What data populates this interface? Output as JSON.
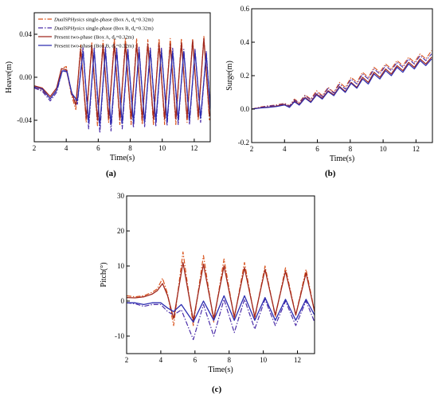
{
  "panel_labels": [
    "(a)",
    "(b)",
    "(c)"
  ],
  "chart_data": [
    {
      "panel": "(a)",
      "type": "line",
      "xlabel": "Time(s)",
      "ylabel": "Heave(m)",
      "xlim": [
        2,
        13
      ],
      "ylim": [
        -0.06,
        0.06
      ],
      "xticks": [
        2,
        4,
        6,
        8,
        10,
        12
      ],
      "yticks": [
        -0.04,
        0.0,
        0.04
      ],
      "ytick_labels": [
        "-0.04",
        "0.00",
        "0.04"
      ],
      "legend": [
        {
          "prefix": "DualSPHysics",
          "text": " single-phase (Box A, d",
          "sub": "s",
          "suffix": "=0.32m)",
          "color": "#d9541e",
          "dash": "6,2,1.5,2"
        },
        {
          "prefix": "DualSPHysics",
          "text": " single-phase (Box B, d",
          "sub": "s",
          "suffix": "=0.32m)",
          "color": "#4a2ca8",
          "dash": "6,2,1.5,2"
        },
        {
          "prefix": "",
          "text": "Present two-phase (Box A, d",
          "sub": "s",
          "suffix": "=0.32m)",
          "color": "#a0281e",
          "dash": ""
        },
        {
          "prefix": "",
          "text": "Present two-phase (Box B, d",
          "sub": "s",
          "suffix": "=0.32m)",
          "color": "#2c2cb0",
          "dash": ""
        }
      ],
      "series": [
        {
          "name": "DualSPHysics single-phase (Box A, ds=0.32m)",
          "color": "#d9541e",
          "dash": "6,2,1.5,2",
          "width": 1.2,
          "x": [
            2.0,
            2.5,
            3.0,
            3.4,
            3.7,
            4.0,
            4.3,
            4.6,
            4.9,
            5.25,
            5.6,
            5.95,
            6.3,
            6.65,
            7.0,
            7.35,
            7.7,
            8.05,
            8.4,
            8.75,
            9.1,
            9.45,
            9.8,
            10.15,
            10.5,
            10.85,
            11.2,
            11.55,
            11.9,
            12.25,
            12.6,
            12.95
          ],
          "y": [
            -0.01,
            -0.012,
            -0.02,
            -0.012,
            0.008,
            0.01,
            -0.015,
            -0.03,
            0.03,
            -0.042,
            0.032,
            -0.045,
            0.034,
            -0.042,
            0.036,
            -0.044,
            0.036,
            -0.044,
            0.036,
            -0.044,
            0.035,
            -0.044,
            0.036,
            -0.044,
            0.036,
            -0.044,
            0.036,
            -0.042,
            0.036,
            -0.04,
            0.038,
            -0.04
          ]
        },
        {
          "name": "DualSPHysics single-phase (Box B, ds=0.32m)",
          "color": "#4a2ca8",
          "dash": "6,2,1.5,2",
          "width": 1.2,
          "x": [
            2.0,
            2.5,
            3.0,
            3.4,
            3.75,
            4.05,
            4.35,
            4.7,
            5.05,
            5.4,
            5.75,
            6.1,
            6.45,
            6.8,
            7.15,
            7.5,
            7.85,
            8.2,
            8.55,
            8.9,
            9.25,
            9.6,
            9.95,
            10.3,
            10.65,
            11.0,
            11.35,
            11.7,
            12.05,
            12.4,
            12.75,
            13.0
          ],
          "y": [
            -0.01,
            -0.013,
            -0.022,
            -0.014,
            0.006,
            0.006,
            -0.016,
            -0.025,
            0.028,
            -0.048,
            0.027,
            -0.052,
            0.028,
            -0.05,
            0.027,
            -0.048,
            0.027,
            -0.047,
            0.028,
            -0.046,
            0.028,
            -0.046,
            0.027,
            -0.045,
            0.027,
            -0.044,
            0.026,
            -0.044,
            0.026,
            -0.042,
            0.024,
            -0.03
          ]
        },
        {
          "name": "Present two-phase (Box A, ds=0.32m)",
          "color": "#a0281e",
          "dash": "",
          "width": 1.3,
          "x": [
            2.0,
            2.5,
            3.0,
            3.4,
            3.7,
            4.0,
            4.3,
            4.6,
            4.9,
            5.25,
            5.6,
            5.95,
            6.3,
            6.65,
            7.0,
            7.35,
            7.7,
            8.05,
            8.4,
            8.75,
            9.1,
            9.45,
            9.8,
            10.15,
            10.5,
            10.85,
            11.2,
            11.55,
            11.9,
            12.25,
            12.6,
            12.95
          ],
          "y": [
            -0.008,
            -0.01,
            -0.018,
            -0.01,
            0.008,
            0.007,
            -0.012,
            -0.026,
            0.026,
            -0.038,
            0.029,
            -0.04,
            0.03,
            -0.038,
            0.031,
            -0.039,
            0.031,
            -0.039,
            0.031,
            -0.039,
            0.031,
            -0.039,
            0.031,
            -0.039,
            0.031,
            -0.039,
            0.032,
            -0.038,
            0.034,
            -0.037,
            0.036,
            -0.036
          ]
        },
        {
          "name": "Present two-phase (Box B, ds=0.32m)",
          "color": "#2c2cb0",
          "dash": "",
          "width": 1.3,
          "x": [
            2.0,
            2.5,
            3.0,
            3.4,
            3.75,
            4.05,
            4.35,
            4.7,
            5.05,
            5.4,
            5.75,
            6.1,
            6.45,
            6.8,
            7.15,
            7.5,
            7.85,
            8.2,
            8.55,
            8.9,
            9.25,
            9.6,
            9.95,
            10.3,
            10.65,
            11.0,
            11.35,
            11.7,
            12.05,
            12.4,
            12.75,
            13.0
          ],
          "y": [
            -0.009,
            -0.011,
            -0.02,
            -0.012,
            0.006,
            0.005,
            -0.015,
            -0.022,
            0.024,
            -0.042,
            0.025,
            -0.045,
            0.025,
            -0.044,
            0.025,
            -0.043,
            0.025,
            -0.042,
            0.025,
            -0.042,
            0.025,
            -0.041,
            0.025,
            -0.041,
            0.024,
            -0.04,
            0.024,
            -0.04,
            0.024,
            -0.038,
            0.022,
            -0.03
          ]
        }
      ]
    },
    {
      "panel": "(b)",
      "type": "line",
      "xlabel": "Time(s)",
      "ylabel": "Surge(m)",
      "xlim": [
        2,
        13
      ],
      "ylim": [
        -0.2,
        0.6
      ],
      "xticks": [
        2,
        4,
        6,
        8,
        10,
        12
      ],
      "yticks": [
        -0.2,
        0.0,
        0.2,
        0.4,
        0.6
      ],
      "ytick_labels": [
        "-0.2",
        "0.0",
        "0.2",
        "0.4",
        "0.6"
      ],
      "series": [
        {
          "name": "DualSPHysics single-phase (Box A, ds=0.32m)",
          "color": "#d9541e",
          "dash": "6,2,1.5,2",
          "width": 1.1,
          "x": [
            2.0,
            2.5,
            3.0,
            3.5,
            4.0,
            4.3,
            4.6,
            4.9,
            5.25,
            5.6,
            5.95,
            6.3,
            6.65,
            7.0,
            7.35,
            7.7,
            8.05,
            8.4,
            8.75,
            9.1,
            9.45,
            9.8,
            10.15,
            10.5,
            10.85,
            11.2,
            11.55,
            11.9,
            12.25,
            12.6,
            12.95
          ],
          "y": [
            0.0,
            0.012,
            0.02,
            0.025,
            0.035,
            0.02,
            0.06,
            0.04,
            0.085,
            0.06,
            0.11,
            0.08,
            0.13,
            0.1,
            0.16,
            0.13,
            0.19,
            0.16,
            0.22,
            0.19,
            0.25,
            0.22,
            0.27,
            0.24,
            0.29,
            0.26,
            0.31,
            0.28,
            0.33,
            0.3,
            0.35
          ]
        },
        {
          "name": "DualSPHysics single-phase (Box B, ds=0.32m)",
          "color": "#4a2ca8",
          "dash": "6,2,1.5,2",
          "width": 1.1,
          "x": [
            2.0,
            2.5,
            3.0,
            3.5,
            4.0,
            4.3,
            4.6,
            4.9,
            5.25,
            5.6,
            5.95,
            6.3,
            6.65,
            7.0,
            7.35,
            7.7,
            8.05,
            8.4,
            8.75,
            9.1,
            9.45,
            9.8,
            10.15,
            10.5,
            10.85,
            11.2,
            11.55,
            11.9,
            12.25,
            12.6,
            12.95
          ],
          "y": [
            0.0,
            0.01,
            0.018,
            0.022,
            0.032,
            0.018,
            0.055,
            0.035,
            0.08,
            0.055,
            0.1,
            0.075,
            0.125,
            0.095,
            0.15,
            0.12,
            0.18,
            0.15,
            0.21,
            0.18,
            0.24,
            0.21,
            0.26,
            0.23,
            0.28,
            0.25,
            0.3,
            0.27,
            0.32,
            0.29,
            0.33
          ]
        },
        {
          "name": "Present two-phase (Box A, ds=0.32m)",
          "color": "#a0281e",
          "dash": "",
          "width": 1.2,
          "x": [
            2.0,
            2.5,
            3.0,
            3.5,
            4.0,
            4.3,
            4.6,
            4.9,
            5.25,
            5.6,
            5.95,
            6.3,
            6.65,
            7.0,
            7.35,
            7.7,
            8.05,
            8.4,
            8.75,
            9.1,
            9.45,
            9.8,
            10.15,
            10.5,
            10.85,
            11.2,
            11.55,
            11.9,
            12.25,
            12.6,
            12.95
          ],
          "y": [
            0.0,
            0.008,
            0.012,
            0.018,
            0.028,
            0.012,
            0.048,
            0.028,
            0.07,
            0.045,
            0.09,
            0.065,
            0.11,
            0.085,
            0.135,
            0.105,
            0.16,
            0.13,
            0.19,
            0.16,
            0.22,
            0.19,
            0.24,
            0.21,
            0.26,
            0.23,
            0.28,
            0.25,
            0.3,
            0.27,
            0.31
          ]
        },
        {
          "name": "Present two-phase (Box B, ds=0.32m)",
          "color": "#2c2cb0",
          "dash": "",
          "width": 1.2,
          "x": [
            2.0,
            2.5,
            3.0,
            3.5,
            4.0,
            4.3,
            4.6,
            4.9,
            5.25,
            5.6,
            5.95,
            6.3,
            6.65,
            7.0,
            7.35,
            7.7,
            8.05,
            8.4,
            8.75,
            9.1,
            9.45,
            9.8,
            10.15,
            10.5,
            10.85,
            11.2,
            11.55,
            11.9,
            12.25,
            12.6,
            12.95
          ],
          "y": [
            0.0,
            0.006,
            0.01,
            0.015,
            0.025,
            0.01,
            0.044,
            0.024,
            0.065,
            0.04,
            0.085,
            0.06,
            0.105,
            0.08,
            0.13,
            0.1,
            0.155,
            0.125,
            0.18,
            0.15,
            0.21,
            0.18,
            0.23,
            0.2,
            0.25,
            0.22,
            0.27,
            0.24,
            0.29,
            0.26,
            0.3
          ]
        }
      ]
    },
    {
      "panel": "(c)",
      "type": "line",
      "xlabel": "Time(s)",
      "ylabel": "Pitch(°)",
      "xlim": [
        2,
        13
      ],
      "ylim": [
        -15,
        30
      ],
      "xticks": [
        2,
        4,
        6,
        8,
        10,
        12
      ],
      "yticks": [
        -10,
        0,
        10,
        20,
        30
      ],
      "ytick_labels": [
        "-10",
        "0",
        "10",
        "20",
        "30"
      ],
      "series": [
        {
          "name": "DualSPHysics single-phase (Box A, ds=0.32m)",
          "color": "#d9541e",
          "dash": "6,2,1.5,2",
          "width": 1.2,
          "x": [
            2.0,
            2.5,
            3.0,
            3.5,
            3.8,
            4.1,
            4.4,
            4.75,
            5.3,
            5.9,
            6.5,
            7.1,
            7.7,
            8.3,
            8.9,
            9.5,
            10.1,
            10.7,
            11.3,
            11.9,
            12.5,
            13.0
          ],
          "y": [
            1.5,
            1.2,
            1.5,
            2.5,
            3.5,
            6.5,
            2.0,
            -7.0,
            14.0,
            -7.0,
            13.0,
            -6.0,
            12.0,
            -5.0,
            11.0,
            -5.0,
            10.0,
            -4.5,
            9.5,
            -4.0,
            9.0,
            -3.0
          ]
        },
        {
          "name": "DualSPHysics single-phase (Box B, ds=0.32m)",
          "color": "#4a2ca8",
          "dash": "6,2,1.5,2",
          "width": 1.2,
          "x": [
            2.0,
            2.5,
            3.0,
            3.5,
            4.0,
            4.4,
            4.75,
            5.2,
            5.9,
            6.5,
            7.1,
            7.7,
            8.3,
            8.9,
            9.5,
            10.1,
            10.7,
            11.3,
            11.9,
            12.5,
            13.0
          ],
          "y": [
            -0.5,
            -0.8,
            -1.5,
            -1.0,
            -1.0,
            -3.0,
            -4.0,
            -2.5,
            -11.0,
            -1.0,
            -10.0,
            0.5,
            -9.0,
            0.5,
            -8.0,
            0.5,
            -7.0,
            0.0,
            -7.0,
            0.0,
            -6.0
          ]
        },
        {
          "name": "Present two-phase (Box A, ds=0.32m)",
          "color": "#a0281e",
          "dash": "",
          "width": 1.3,
          "x": [
            2.0,
            2.5,
            3.0,
            3.5,
            3.8,
            4.1,
            4.4,
            4.75,
            5.3,
            5.9,
            6.5,
            7.1,
            7.7,
            8.3,
            8.9,
            9.5,
            10.1,
            10.7,
            11.3,
            11.9,
            12.5,
            13.0
          ],
          "y": [
            1.0,
            0.9,
            1.2,
            2.0,
            3.0,
            5.0,
            1.5,
            -5.0,
            11.0,
            -5.5,
            10.5,
            -5.0,
            10.0,
            -4.5,
            9.5,
            -4.5,
            9.0,
            -4.0,
            8.5,
            -4.0,
            8.0,
            -3.0
          ]
        },
        {
          "name": "Present two-phase (Box B, ds=0.32m)",
          "color": "#2c2cb0",
          "dash": "",
          "width": 1.3,
          "x": [
            2.0,
            2.5,
            3.0,
            3.5,
            4.0,
            4.4,
            4.75,
            5.2,
            5.9,
            6.5,
            7.1,
            7.7,
            8.3,
            8.9,
            9.5,
            10.1,
            10.7,
            11.3,
            11.9,
            12.5,
            13.0
          ],
          "y": [
            -0.5,
            -0.5,
            -1.0,
            -0.5,
            -0.5,
            -2.0,
            -3.0,
            -1.0,
            -6.0,
            0.0,
            -5.5,
            1.5,
            -5.5,
            1.5,
            -5.5,
            1.0,
            -5.5,
            0.5,
            -5.5,
            0.5,
            -4.0
          ]
        }
      ]
    }
  ]
}
